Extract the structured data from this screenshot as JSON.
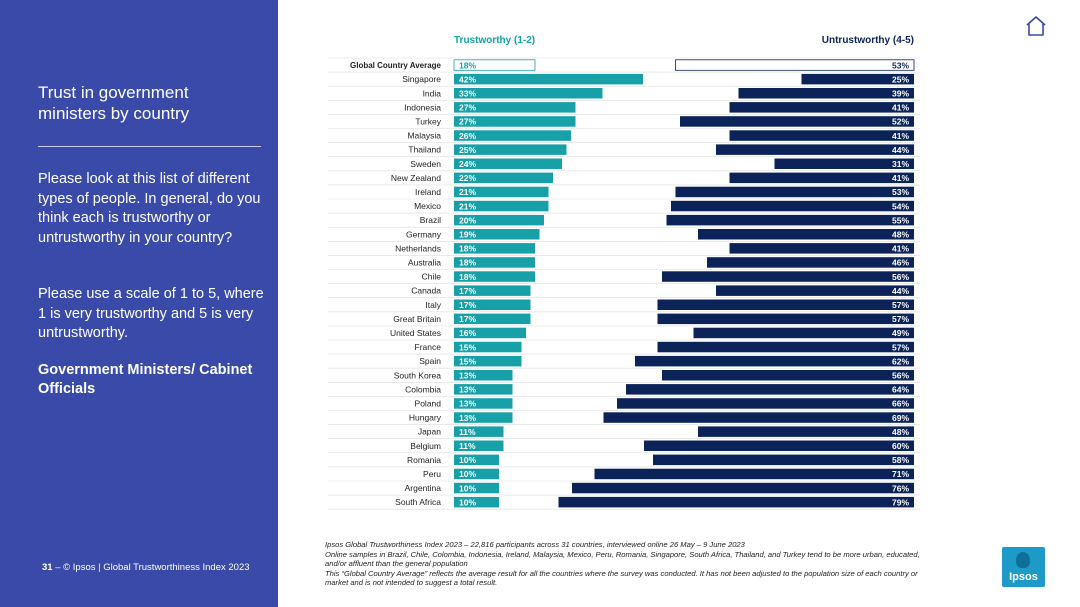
{
  "sidebar": {
    "title": "Trust in government ministers by country",
    "question": "Please look at this list of different types of people. In general, do you think each is trustworthy or untrustworthy in your country?",
    "scale": "Please use a scale of 1 to 5, where 1 is very trustworthy and 5 is very untrustworthy.",
    "subject": "Government Ministers/ Cabinet Officials",
    "page_number": "31",
    "footer": "– © Ipsos | Global Trustworthiness Index 2023"
  },
  "footnote": {
    "line1": "Ipsos Global Trustworthiness Index 2023 – 22,816 participants across 31 countries, interviewed online 26 May – 9 June 2023",
    "line2": "Online samples in Brazil, Chile, Colombia, Indonesia, Ireland, Malaysia, Mexico, Peru, Romania, Singapore, South Africa, Thailand, and Turkey tend to be more urban, educated, and/or affluent than the general population",
    "line3": "This “Global Country Average” reflects the average result for all the countries where the survey was conducted. It has not been adjusted to the population size of each country or market and is not intended to suggest a total result."
  },
  "logo": {
    "text": "Ipsos"
  },
  "colors": {
    "sidebar": "#3a4aa8",
    "trustworthy": "#17a0a8",
    "untrustworthy": "#0b2358"
  },
  "chart_data": {
    "type": "bar",
    "series": [
      {
        "name": "Trustworthy (1-2)",
        "values": [
          18,
          42,
          33,
          27,
          27,
          26,
          25,
          24,
          22,
          21,
          21,
          20,
          19,
          18,
          18,
          18,
          17,
          17,
          17,
          16,
          15,
          15,
          13,
          13,
          13,
          13,
          11,
          11,
          10,
          10,
          10,
          10
        ]
      },
      {
        "name": "Untrustworthy (4-5)",
        "values": [
          53,
          25,
          39,
          41,
          52,
          41,
          44,
          31,
          41,
          53,
          54,
          55,
          48,
          41,
          46,
          56,
          44,
          57,
          57,
          49,
          57,
          62,
          56,
          64,
          66,
          69,
          48,
          60,
          58,
          71,
          76,
          79
        ]
      }
    ],
    "categories": [
      "Global Country Average",
      "Singapore",
      "India",
      "Indonesia",
      "Turkey",
      "Malaysia",
      "Thailand",
      "Sweden",
      "New Zealand",
      "Ireland",
      "Mexico",
      "Brazil",
      "Germany",
      "Netherlands",
      "Australia",
      "Chile",
      "Canada",
      "Italy",
      "Great Britain",
      "United States",
      "France",
      "Spain",
      "South Korea",
      "Colombia",
      "Poland",
      "Hungary",
      "Japan",
      "Belgium",
      "Romania",
      "Peru",
      "Argentina",
      "South Africa"
    ],
    "value_suffix": "%",
    "highlighted_category": "Global Country Average",
    "legend": "top",
    "grid": true
  }
}
